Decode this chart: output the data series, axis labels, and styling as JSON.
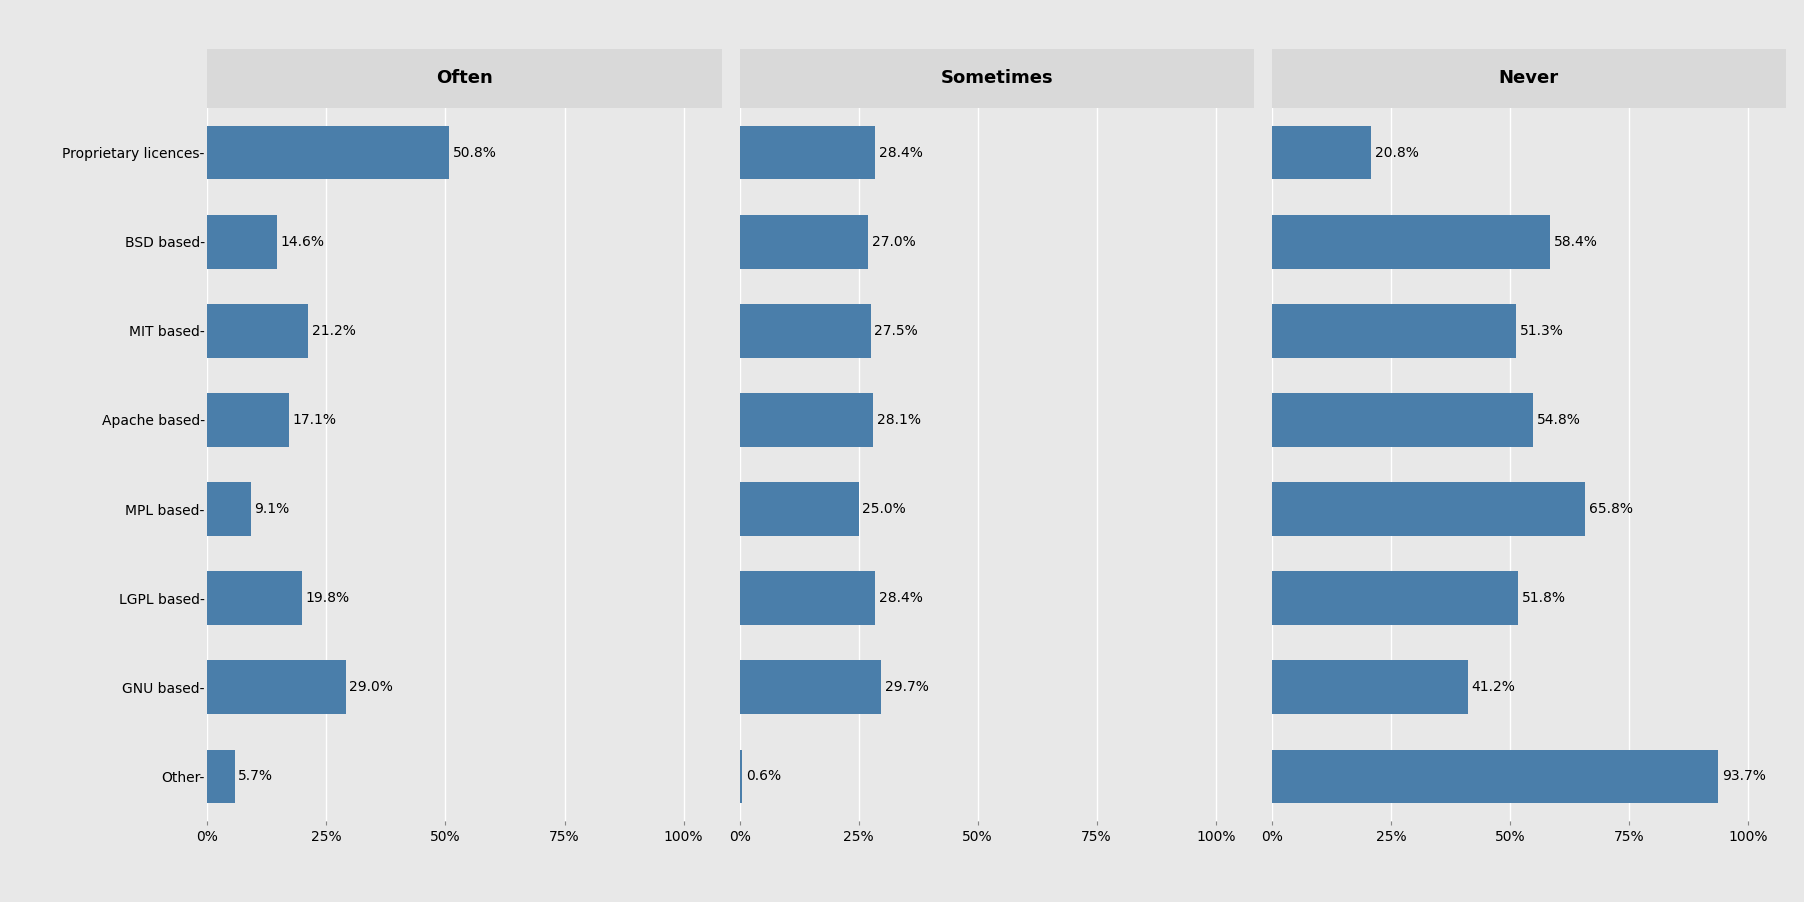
{
  "categories": [
    "Proprietary licences",
    "BSD based",
    "MIT based",
    "Apache based",
    "MPL based",
    "LGPL based",
    "GNU based",
    "Other"
  ],
  "panels": [
    "Often",
    "Sometimes",
    "Never"
  ],
  "values": {
    "Often": [
      50.8,
      14.6,
      21.2,
      17.1,
      9.1,
      19.8,
      29.0,
      5.7
    ],
    "Sometimes": [
      28.4,
      27.0,
      27.5,
      28.1,
      25.0,
      28.4,
      29.7,
      0.6
    ],
    "Never": [
      20.8,
      58.4,
      51.3,
      54.8,
      65.8,
      51.8,
      41.2,
      93.7
    ]
  },
  "bar_color": "#4a7eaa",
  "bg_color": "#e8e8e8",
  "panel_bg_color": "#e8e8e8",
  "strip_bg_color": "#d9d9d9",
  "grid_color": "#ffffff",
  "title_fontsize": 13,
  "label_fontsize": 10,
  "tick_fontsize": 10,
  "value_fontsize": 10,
  "bar_height": 0.6,
  "xlim": [
    0,
    100
  ]
}
